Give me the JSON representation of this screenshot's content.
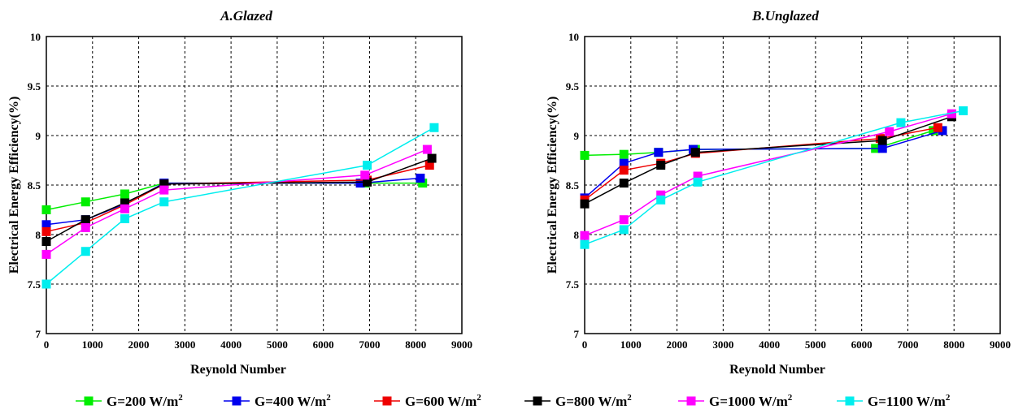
{
  "legend": {
    "entries": [
      {
        "prefix": "G=200 W/m",
        "sup": "2"
      },
      {
        "prefix": "G=400 W/m",
        "sup": "2"
      },
      {
        "prefix": "G=600 W/m",
        "sup": "2"
      },
      {
        "prefix": "G=800 W/m",
        "sup": "2"
      },
      {
        "prefix": "G=1000 W/m",
        "sup": "2"
      },
      {
        "prefix": "G=1100 W/m",
        "sup": "2"
      }
    ]
  },
  "chart_data": [
    {
      "type": "line",
      "title": "A.Glazed",
      "xlabel": "Reynold Number",
      "ylabel": "Electrical Energy Efficiency(%)",
      "xlim": [
        0,
        9000
      ],
      "ylim": [
        7,
        10
      ],
      "xticks": [
        "0",
        "1000",
        "2000",
        "3000",
        "4000",
        "5000",
        "6000",
        "7000",
        "8000",
        "9000"
      ],
      "yticks": [
        "7",
        "7.5",
        "8",
        "8.5",
        "9",
        "9.5",
        "10"
      ],
      "grid": true,
      "series": [
        {
          "name": "G=200 W/m2",
          "color": "#00ee00",
          "x": [
            0,
            850,
            1700,
            2550,
            6900,
            8150
          ],
          "y": [
            8.25,
            8.33,
            8.41,
            8.52,
            8.52,
            8.52
          ]
        },
        {
          "name": "G=400 W/m2",
          "color": "#0000ee",
          "x": [
            0,
            850,
            1700,
            2550,
            6800,
            8100
          ],
          "y": [
            8.1,
            8.15,
            8.31,
            8.52,
            8.52,
            8.57
          ]
        },
        {
          "name": "G=600 W/m2",
          "color": "#ee0000",
          "x": [
            0,
            850,
            1700,
            2550,
            6950,
            8300
          ],
          "y": [
            8.03,
            8.12,
            8.3,
            8.51,
            8.55,
            8.7
          ]
        },
        {
          "name": "G=800 W/m2",
          "color": "#000000",
          "x": [
            0,
            850,
            1700,
            2550,
            6950,
            8350
          ],
          "y": [
            7.93,
            8.15,
            8.32,
            8.51,
            8.53,
            8.77
          ]
        },
        {
          "name": "G=1000 W/m2",
          "color": "#ff00ff",
          "x": [
            0,
            850,
            1700,
            2550,
            6900,
            8250
          ],
          "y": [
            7.8,
            8.07,
            8.26,
            8.45,
            8.6,
            8.86
          ]
        },
        {
          "name": "G=1100 W/m2",
          "color": "#00eeee",
          "x": [
            0,
            850,
            1700,
            2550,
            6950,
            8400
          ],
          "y": [
            7.5,
            7.83,
            8.16,
            8.33,
            8.7,
            9.08
          ]
        }
      ]
    },
    {
      "type": "line",
      "title": "B.Unglazed",
      "xlabel": "Reynold Number",
      "ylabel": "Electrical Energy Efficiency(%)",
      "xlim": [
        0,
        9000
      ],
      "ylim": [
        7,
        10
      ],
      "xticks": [
        "0",
        "1000",
        "2000",
        "3000",
        "4000",
        "5000",
        "6000",
        "7000",
        "8000",
        "9000"
      ],
      "yticks": [
        "7",
        "7.5",
        "8",
        "8.5",
        "9",
        "9.5",
        "10"
      ],
      "grid": true,
      "series": [
        {
          "name": "G=200 W/m2",
          "color": "#00ee00",
          "x": [
            0,
            850,
            1600,
            2400,
            6300,
            7550
          ],
          "y": [
            8.8,
            8.81,
            8.83,
            8.86,
            8.87,
            9.05
          ]
        },
        {
          "name": "G=400 W/m2",
          "color": "#0000ee",
          "x": [
            0,
            850,
            1600,
            2350,
            6450,
            7750
          ],
          "y": [
            8.37,
            8.72,
            8.83,
            8.86,
            8.87,
            9.05
          ]
        },
        {
          "name": "G=600 W/m2",
          "color": "#ee0000",
          "x": [
            0,
            850,
            1650,
            2400,
            6400,
            7650
          ],
          "y": [
            8.35,
            8.65,
            8.72,
            8.82,
            8.97,
            9.08
          ]
        },
        {
          "name": "G=800 W/m2",
          "color": "#000000",
          "x": [
            0,
            850,
            1650,
            2400,
            6450,
            7950
          ],
          "y": [
            8.31,
            8.52,
            8.7,
            8.83,
            8.95,
            9.19
          ]
        },
        {
          "name": "G=1000 W/m2",
          "color": "#ff00ff",
          "x": [
            0,
            850,
            1650,
            2450,
            6600,
            7950
          ],
          "y": [
            7.99,
            8.15,
            8.4,
            8.59,
            9.04,
            9.22
          ]
        },
        {
          "name": "G=1100 W/m2",
          "color": "#00eeee",
          "x": [
            0,
            850,
            1650,
            2450,
            6850,
            8200
          ],
          "y": [
            7.9,
            8.05,
            8.35,
            8.53,
            9.13,
            9.25
          ]
        }
      ]
    }
  ]
}
